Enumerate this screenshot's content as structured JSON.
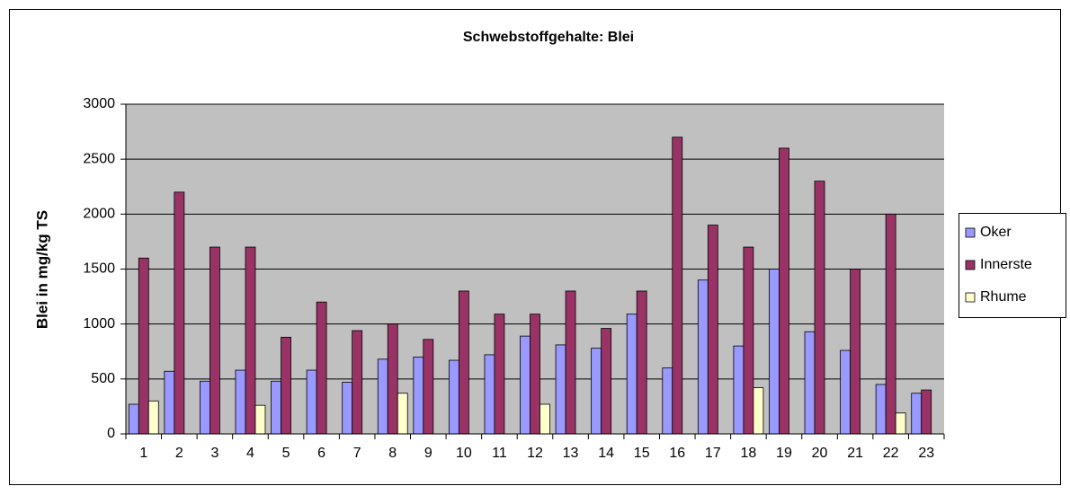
{
  "chart_data": {
    "type": "bar",
    "title": "Schwebstoffgehalte: Blei",
    "ylabel": "Blei in mg/kg TS",
    "categories": [
      "1",
      "2",
      "3",
      "4",
      "5",
      "6",
      "7",
      "8",
      "9",
      "10",
      "11",
      "12",
      "13",
      "14",
      "15",
      "16",
      "17",
      "18",
      "19",
      "20",
      "21",
      "22",
      "23"
    ],
    "series": [
      {
        "name": "Oker",
        "color": "#9999ff",
        "values": [
          270,
          570,
          480,
          580,
          480,
          580,
          470,
          680,
          700,
          670,
          720,
          890,
          810,
          780,
          1090,
          600,
          1400,
          800,
          1500,
          930,
          760,
          450,
          370
        ]
      },
      {
        "name": "Innerste",
        "color": "#993366",
        "values": [
          1600,
          2200,
          1700,
          1700,
          880,
          1200,
          940,
          1000,
          860,
          1300,
          1090,
          1090,
          1300,
          960,
          1300,
          2700,
          1900,
          1700,
          2600,
          2300,
          1500,
          2000,
          400
        ]
      },
      {
        "name": "Rhume",
        "color": "#ffffcc",
        "values": [
          300,
          null,
          null,
          260,
          null,
          null,
          null,
          370,
          null,
          null,
          null,
          270,
          null,
          null,
          null,
          null,
          null,
          420,
          null,
          null,
          null,
          190,
          null
        ]
      }
    ],
    "ylim": [
      0,
      3000
    ],
    "yticks": [
      0,
      500,
      1000,
      1500,
      2000,
      2500,
      3000
    ],
    "grid": true,
    "legend": "right"
  }
}
